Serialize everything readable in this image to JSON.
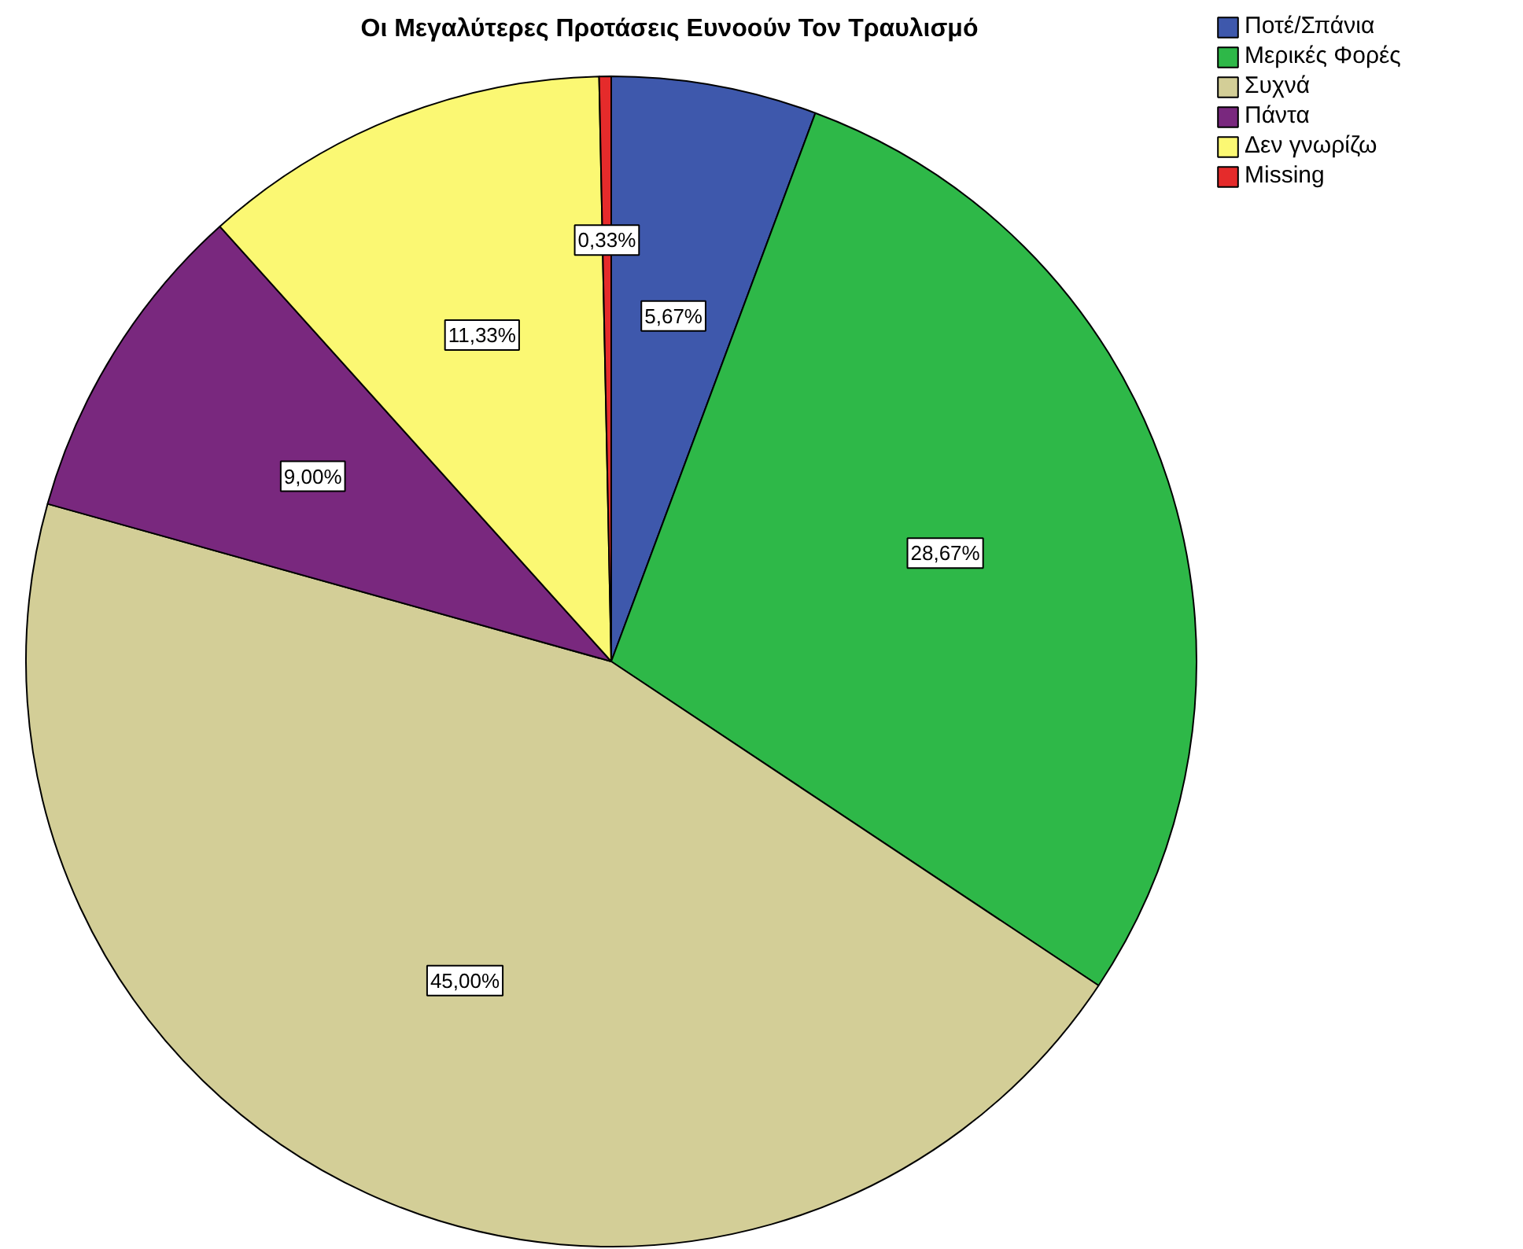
{
  "chart_data": {
    "type": "pie",
    "title": "Οι Μεγαλύτερες Προτάσεις Ευνοούν Τον Τραυλισμό",
    "categories": [
      "Ποτέ/Σπάνια",
      "Μερικές Φορές",
      "Συχνά",
      "Πάντα",
      "Δεν γνωρίζω",
      "Missing"
    ],
    "values": [
      5.67,
      28.67,
      45.0,
      9.0,
      11.33,
      0.33
    ],
    "colors": [
      "#3e58ac",
      "#2eb848",
      "#d3ce97",
      "#79287e",
      "#fbf873",
      "#e52b2b"
    ],
    "value_labels": [
      "5,67%",
      "28,67%",
      "45,00%",
      "9,00%",
      "11,33%",
      "0,33%"
    ],
    "legend": "top right"
  }
}
